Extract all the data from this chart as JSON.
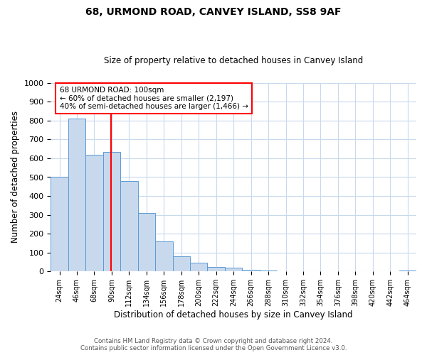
{
  "title": "68, URMOND ROAD, CANVEY ISLAND, SS8 9AF",
  "subtitle": "Size of property relative to detached houses in Canvey Island",
  "xlabel": "Distribution of detached houses by size in Canvey Island",
  "ylabel": "Number of detached properties",
  "bin_labels": [
    "24sqm",
    "46sqm",
    "68sqm",
    "90sqm",
    "112sqm",
    "134sqm",
    "156sqm",
    "178sqm",
    "200sqm",
    "222sqm",
    "244sqm",
    "266sqm",
    "288sqm",
    "310sqm",
    "332sqm",
    "354sqm",
    "376sqm",
    "398sqm",
    "420sqm",
    "442sqm",
    "464sqm"
  ],
  "bin_edges": [
    24,
    46,
    68,
    90,
    112,
    134,
    156,
    178,
    200,
    222,
    244,
    266,
    288,
    310,
    332,
    354,
    376,
    398,
    420,
    442,
    464,
    486
  ],
  "bar_heights": [
    500,
    810,
    620,
    635,
    480,
    310,
    160,
    80,
    47,
    22,
    18,
    10,
    5,
    2,
    0,
    0,
    0,
    0,
    0,
    0,
    5
  ],
  "bar_color": "#c8d9ed",
  "bar_edge_color": "#5b9bd5",
  "grid_color": "#c8d9ed",
  "vline_x": 100,
  "vline_color": "red",
  "annotation_line1": "68 URMOND ROAD: 100sqm",
  "annotation_line2": "← 60% of detached houses are smaller (2,197)",
  "annotation_line3": "40% of semi-detached houses are larger (1,466) →",
  "annotation_box_color": "white",
  "annotation_box_edge_color": "red",
  "ylim": [
    0,
    1000
  ],
  "yticks": [
    0,
    100,
    200,
    300,
    400,
    500,
    600,
    700,
    800,
    900,
    1000
  ],
  "footnote1": "Contains HM Land Registry data © Crown copyright and database right 2024.",
  "footnote2": "Contains public sector information licensed under the Open Government Licence v3.0."
}
